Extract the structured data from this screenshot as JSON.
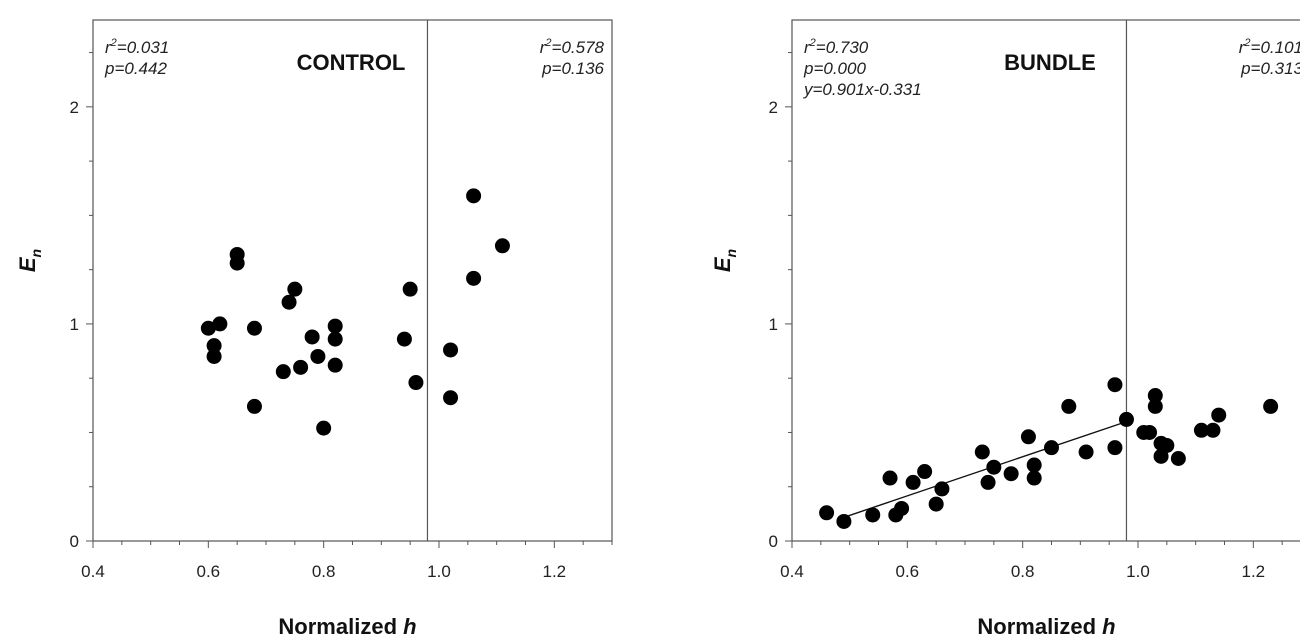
{
  "chart_data": [
    {
      "type": "scatter",
      "title": "CONTROL",
      "xlabel": "Normalized",
      "xlabel_var": "h",
      "ylabel": "E",
      "ylabel_sub": "n",
      "xlim": [
        0.4,
        1.3
      ],
      "ylim": [
        0,
        2.4
      ],
      "xticks": [
        0.4,
        0.6,
        0.8,
        1.0,
        1.2
      ],
      "xtick_labels": [
        "0.4",
        "0.6",
        "0.8",
        "1.0",
        "1.2"
      ],
      "yticks": [
        0,
        1,
        2
      ],
      "ytick_labels": [
        "0",
        "1",
        "2"
      ],
      "grid": false,
      "divider_x": 0.98,
      "stats_left": [
        "r²=0.031",
        "p=0.442"
      ],
      "stats_right": [
        "r²=0.578",
        "p=0.136"
      ],
      "points": [
        {
          "x": 0.6,
          "y": 0.98
        },
        {
          "x": 0.61,
          "y": 0.85
        },
        {
          "x": 0.61,
          "y": 0.9
        },
        {
          "x": 0.62,
          "y": 1.0
        },
        {
          "x": 0.65,
          "y": 1.32
        },
        {
          "x": 0.65,
          "y": 1.28
        },
        {
          "x": 0.68,
          "y": 0.98
        },
        {
          "x": 0.68,
          "y": 0.62
        },
        {
          "x": 0.73,
          "y": 0.78
        },
        {
          "x": 0.74,
          "y": 1.1
        },
        {
          "x": 0.75,
          "y": 1.16
        },
        {
          "x": 0.76,
          "y": 0.8
        },
        {
          "x": 0.78,
          "y": 0.94
        },
        {
          "x": 0.79,
          "y": 0.85
        },
        {
          "x": 0.8,
          "y": 0.52
        },
        {
          "x": 0.82,
          "y": 0.99
        },
        {
          "x": 0.82,
          "y": 0.93
        },
        {
          "x": 0.82,
          "y": 0.81
        },
        {
          "x": 0.94,
          "y": 0.93
        },
        {
          "x": 0.95,
          "y": 1.16
        },
        {
          "x": 0.96,
          "y": 0.73
        },
        {
          "x": 1.02,
          "y": 0.88
        },
        {
          "x": 1.02,
          "y": 0.66
        },
        {
          "x": 1.06,
          "y": 1.59
        },
        {
          "x": 1.06,
          "y": 1.21
        },
        {
          "x": 1.11,
          "y": 1.36
        }
      ]
    },
    {
      "type": "scatter",
      "title": "BUNDLE",
      "xlabel": "Normalized",
      "xlabel_var": "h",
      "ylabel": "E",
      "ylabel_sub": "n",
      "xlim": [
        0.4,
        1.3
      ],
      "ylim": [
        0,
        2.4
      ],
      "xticks": [
        0.4,
        0.6,
        0.8,
        1.0,
        1.2
      ],
      "xtick_labels": [
        "0.4",
        "0.6",
        "0.8",
        "1.0",
        "1.2"
      ],
      "yticks": [
        0,
        1,
        2
      ],
      "ytick_labels": [
        "0",
        "1",
        "2"
      ],
      "grid": false,
      "divider_x": 0.98,
      "stats_left": [
        "r²=0.730",
        "p=0.000",
        "y=0.901x-0.331"
      ],
      "stats_right": [
        "r²=0.101",
        "p=0.313"
      ],
      "fit_line": {
        "x": [
          0.48,
          0.98
        ],
        "y": [
          0.1,
          0.55
        ]
      },
      "points": [
        {
          "x": 0.46,
          "y": 0.13
        },
        {
          "x": 0.49,
          "y": 0.09
        },
        {
          "x": 0.54,
          "y": 0.12
        },
        {
          "x": 0.57,
          "y": 0.29
        },
        {
          "x": 0.58,
          "y": 0.12
        },
        {
          "x": 0.59,
          "y": 0.15
        },
        {
          "x": 0.61,
          "y": 0.27
        },
        {
          "x": 0.63,
          "y": 0.32
        },
        {
          "x": 0.65,
          "y": 0.17
        },
        {
          "x": 0.66,
          "y": 0.24
        },
        {
          "x": 0.73,
          "y": 0.41
        },
        {
          "x": 0.74,
          "y": 0.27
        },
        {
          "x": 0.75,
          "y": 0.34
        },
        {
          "x": 0.78,
          "y": 0.31
        },
        {
          "x": 0.81,
          "y": 0.48
        },
        {
          "x": 0.82,
          "y": 0.29
        },
        {
          "x": 0.82,
          "y": 0.35
        },
        {
          "x": 0.85,
          "y": 0.43
        },
        {
          "x": 0.88,
          "y": 0.62
        },
        {
          "x": 0.91,
          "y": 0.41
        },
        {
          "x": 0.96,
          "y": 0.43
        },
        {
          "x": 0.96,
          "y": 0.72
        },
        {
          "x": 0.98,
          "y": 0.56
        },
        {
          "x": 1.01,
          "y": 0.5
        },
        {
          "x": 1.02,
          "y": 0.5
        },
        {
          "x": 1.03,
          "y": 0.62
        },
        {
          "x": 1.03,
          "y": 0.67
        },
        {
          "x": 1.04,
          "y": 0.45
        },
        {
          "x": 1.04,
          "y": 0.39
        },
        {
          "x": 1.05,
          "y": 0.44
        },
        {
          "x": 1.07,
          "y": 0.38
        },
        {
          "x": 1.11,
          "y": 0.51
        },
        {
          "x": 1.13,
          "y": 0.51
        },
        {
          "x": 1.14,
          "y": 0.58
        },
        {
          "x": 1.23,
          "y": 0.62
        }
      ]
    }
  ]
}
